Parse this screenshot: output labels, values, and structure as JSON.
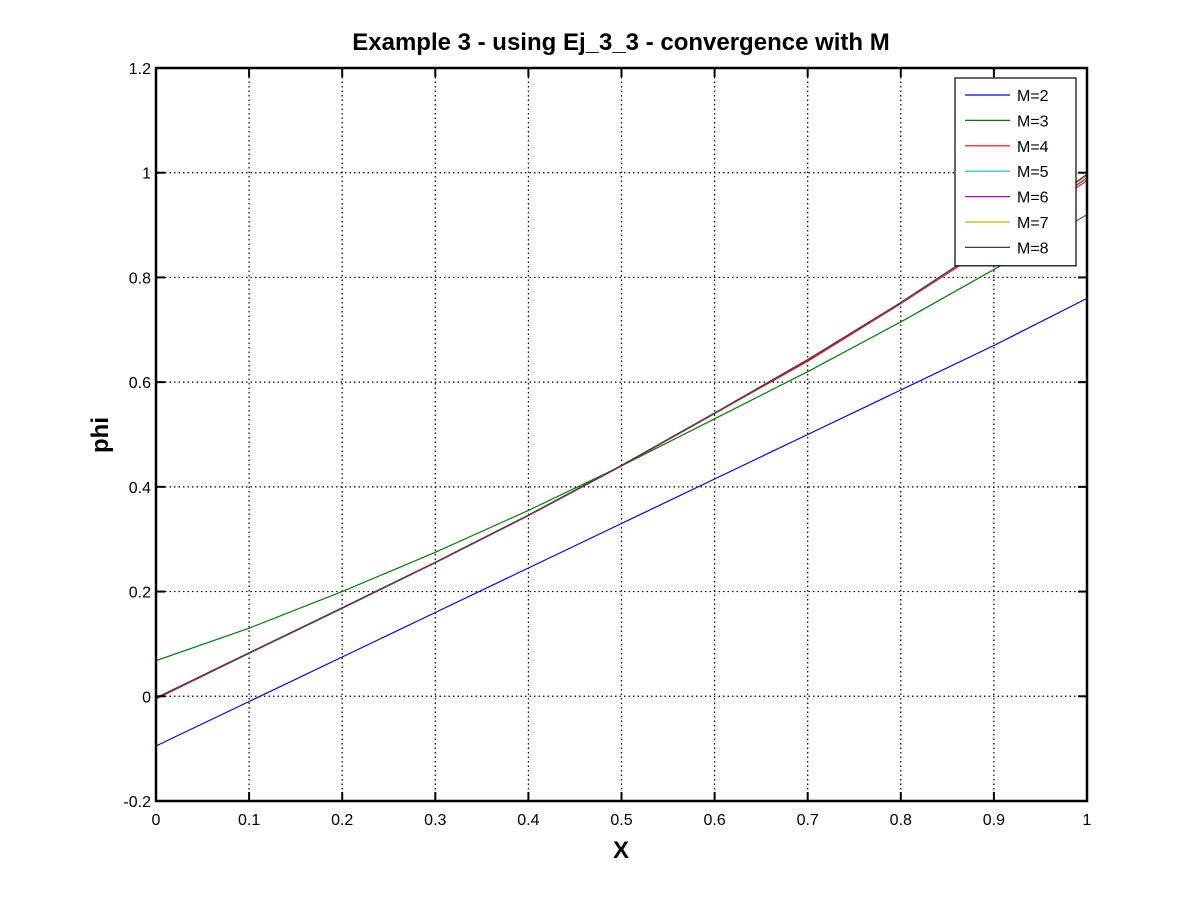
{
  "chart_data": {
    "type": "line",
    "title": "Example 3 - using Ej_3_3 - convergence with M",
    "xlabel": "X",
    "ylabel": "phi",
    "xlim": [
      0,
      1
    ],
    "ylim": [
      -0.2,
      1.2
    ],
    "xticks": [
      0,
      0.1,
      0.2,
      0.3,
      0.4,
      0.5,
      0.6,
      0.7,
      0.8,
      0.9,
      1
    ],
    "yticks": [
      -0.2,
      0,
      0.2,
      0.4,
      0.6,
      0.8,
      1,
      1.2
    ],
    "xtick_labels": [
      "0",
      "0.1",
      "0.2",
      "0.3",
      "0.4",
      "0.5",
      "0.6",
      "0.7",
      "0.8",
      "0.9",
      "1"
    ],
    "ytick_labels": [
      "-0.2",
      "0",
      "0.2",
      "0.4",
      "0.6",
      "0.8",
      "1",
      "1.2"
    ],
    "grid": true,
    "legend_position": "top-right",
    "x": [
      0,
      0.1,
      0.2,
      0.3,
      0.4,
      0.5,
      0.6,
      0.7,
      0.8,
      0.9,
      1
    ],
    "series": [
      {
        "name": "M=2",
        "color": "#0000ff",
        "values": [
          -0.095,
          -0.01,
          0.075,
          0.16,
          0.245,
          0.33,
          0.415,
          0.5,
          0.585,
          0.67,
          0.76
        ]
      },
      {
        "name": "M=3",
        "color": "#008000",
        "values": [
          0.068,
          0.13,
          0.2,
          0.275,
          0.355,
          0.44,
          0.53,
          0.62,
          0.715,
          0.815,
          0.92
        ]
      },
      {
        "name": "M=4",
        "color": "#ff0000",
        "values": [
          -0.005,
          0.082,
          0.168,
          0.255,
          0.345,
          0.44,
          0.54,
          0.64,
          0.75,
          0.865,
          0.985
        ]
      },
      {
        "name": "M=5",
        "color": "#00bfbf",
        "values": [
          -0.003,
          0.083,
          0.169,
          0.256,
          0.346,
          0.441,
          0.541,
          0.643,
          0.752,
          0.868,
          0.99
        ]
      },
      {
        "name": "M=6",
        "color": "#bf00bf",
        "values": [
          -0.004,
          0.082,
          0.168,
          0.255,
          0.345,
          0.44,
          0.54,
          0.642,
          0.751,
          0.867,
          0.99
        ]
      },
      {
        "name": "M=7",
        "color": "#bfbf00",
        "values": [
          -0.003,
          0.083,
          0.169,
          0.256,
          0.346,
          0.441,
          0.541,
          0.643,
          0.752,
          0.868,
          0.995
        ]
      },
      {
        "name": "M=8",
        "color": "#3f3f3f",
        "values": [
          -0.003,
          0.083,
          0.169,
          0.256,
          0.346,
          0.441,
          0.541,
          0.643,
          0.752,
          0.869,
          0.997
        ]
      }
    ]
  }
}
